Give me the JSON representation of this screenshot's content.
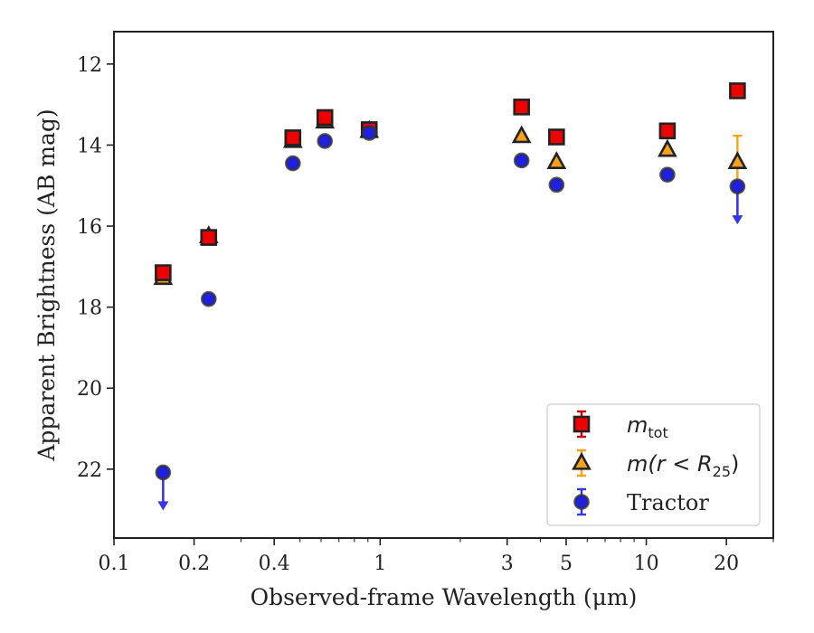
{
  "chart_data": {
    "type": "scatter",
    "title": "",
    "xlabel": "Observed-frame Wavelength (μm)",
    "ylabel": "Apparent Brightness (AB mag)",
    "xscale": "log",
    "xlim": [
      0.1,
      30
    ],
    "ylim": [
      23.7,
      11.2
    ],
    "y_inverted": true,
    "xticks": [
      {
        "value": 0.1,
        "label": "0.1"
      },
      {
        "value": 0.2,
        "label": "0.2"
      },
      {
        "value": 0.4,
        "label": "0.4"
      },
      {
        "value": 1,
        "label": "1"
      },
      {
        "value": 3,
        "label": "3"
      },
      {
        "value": 5,
        "label": "5"
      },
      {
        "value": 10,
        "label": "10"
      },
      {
        "value": 20,
        "label": "20"
      }
    ],
    "yticks": [
      {
        "value": 12,
        "label": "12"
      },
      {
        "value": 14,
        "label": "14"
      },
      {
        "value": 16,
        "label": "16"
      },
      {
        "value": 18,
        "label": "18"
      },
      {
        "value": 20,
        "label": "20"
      },
      {
        "value": 22,
        "label": "22"
      }
    ],
    "grid": false,
    "legend_position": "lower-right",
    "series": [
      {
        "name": "m_tot",
        "legend_main": "m",
        "legend_sub": "tot",
        "marker": "square",
        "color": "#ee0000",
        "edge_color": "#222222",
        "errcolor": "#cc0000",
        "points": [
          {
            "x": 0.153,
            "y": 17.15,
            "err": 0.1
          },
          {
            "x": 0.227,
            "y": 16.28,
            "err": 0.06
          },
          {
            "x": 0.47,
            "y": 13.82,
            "err": 0.06
          },
          {
            "x": 0.62,
            "y": 13.32,
            "err": 0.05
          },
          {
            "x": 0.91,
            "y": 13.62,
            "err": 0.05
          },
          {
            "x": 3.4,
            "y": 13.06,
            "err": 0.03
          },
          {
            "x": 4.6,
            "y": 13.8,
            "err": 0.04
          },
          {
            "x": 12.0,
            "y": 13.65,
            "err": 0.04
          },
          {
            "x": 22.0,
            "y": 12.66,
            "err": 0.05
          }
        ]
      },
      {
        "name": "m(r < R_25)",
        "legend_main": "m(r < R",
        "legend_sub": "25",
        "legend_tail": ")",
        "marker": "triangle",
        "color": "#f5a21a",
        "edge_color": "#222222",
        "errcolor": "#f5a21a",
        "points": [
          {
            "x": 0.153,
            "y": 17.28,
            "err": 0.05
          },
          {
            "x": 0.227,
            "y": 16.25,
            "err": 0.05
          },
          {
            "x": 0.47,
            "y": 13.9,
            "err": 0.05
          },
          {
            "x": 0.62,
            "y": 13.42,
            "err": 0.05
          },
          {
            "x": 0.91,
            "y": 13.65,
            "err": 0.05
          },
          {
            "x": 3.4,
            "y": 13.78,
            "err": 0.05
          },
          {
            "x": 4.6,
            "y": 14.42,
            "err": 0.05
          },
          {
            "x": 12.0,
            "y": 14.12,
            "err": 0.05
          },
          {
            "x": 22.0,
            "y": 14.42,
            "err": 0.65
          }
        ]
      },
      {
        "name": "Tractor",
        "legend_main": "Tractor",
        "marker": "circle",
        "color": "#1f1fe0",
        "edge_color": "#333333",
        "errcolor": "#3535e6",
        "points": [
          {
            "x": 0.153,
            "y": 22.08,
            "err": 0.05,
            "upper_limit": true
          },
          {
            "x": 0.227,
            "y": 17.8,
            "err": 0.05
          },
          {
            "x": 0.47,
            "y": 14.45,
            "err": 0.05
          },
          {
            "x": 0.62,
            "y": 13.9,
            "err": 0.05
          },
          {
            "x": 0.91,
            "y": 13.7,
            "err": 0.05
          },
          {
            "x": 3.4,
            "y": 14.38,
            "err": 0.05
          },
          {
            "x": 4.6,
            "y": 14.98,
            "err": 0.05
          },
          {
            "x": 12.0,
            "y": 14.73,
            "err": 0.05
          },
          {
            "x": 22.0,
            "y": 15.02,
            "err": 0.05,
            "upper_limit": true
          }
        ]
      }
    ]
  }
}
